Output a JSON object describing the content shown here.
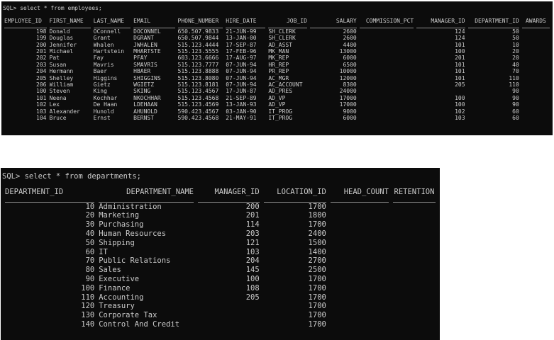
{
  "colors": {
    "terminal_background": "#0c0c0c",
    "terminal_text": "#cccccc",
    "separator_line": "#8f8f8f",
    "page_background": "#ffffff"
  },
  "employees_window": {
    "prompt": "SQL> select * from employees;",
    "columns": [
      "EMPLOYEE_ID",
      "FIRST_NAME",
      "LAST_NAME",
      "EMAIL",
      "PHONE_NUMBER",
      "HIRE_DATE",
      "JOB_ID",
      "SALARY",
      "COMMISSION_PCT",
      "MANAGER_ID",
      "DEPARTMENT_ID",
      "AWARDS"
    ],
    "rows": [
      [
        "198",
        "Donald",
        "OConnell",
        "DOCONNEL",
        "650.507.9833",
        "21-JUN-99",
        "SH_CLERK",
        "2600",
        "",
        "124",
        "50",
        ""
      ],
      [
        "199",
        "Douglas",
        "Grant",
        "DGRANT",
        "650.507.9844",
        "13-JAN-00",
        "SH_CLERK",
        "2600",
        "",
        "124",
        "50",
        ""
      ],
      [
        "200",
        "Jennifer",
        "Whalen",
        "JWHALEN",
        "515.123.4444",
        "17-SEP-87",
        "AD_ASST",
        "4400",
        "",
        "101",
        "10",
        ""
      ],
      [
        "201",
        "Michael",
        "Hartstein",
        "MHARTSTE",
        "515.123.5555",
        "17-FEB-96",
        "MK_MAN",
        "13000",
        "",
        "100",
        "20",
        ""
      ],
      [
        "202",
        "Pat",
        "Fay",
        "PFAY",
        "603.123.6666",
        "17-AUG-97",
        "MK_REP",
        "6000",
        "",
        "201",
        "20",
        ""
      ],
      [
        "203",
        "Susan",
        "Mavris",
        "SMAVRIS",
        "515.123.7777",
        "07-JUN-94",
        "HR_REP",
        "6500",
        "",
        "101",
        "40",
        ""
      ],
      [
        "204",
        "Hermann",
        "Baer",
        "HBAER",
        "515.123.8888",
        "07-JUN-94",
        "PR_REP",
        "10000",
        "",
        "101",
        "70",
        ""
      ],
      [
        "205",
        "Shelley",
        "Higgins",
        "SHIGGINS",
        "515.123.8080",
        "07-JUN-94",
        "AC_MGR",
        "12000",
        "",
        "101",
        "110",
        ""
      ],
      [
        "206",
        "William",
        "Gietz",
        "WGIETZ",
        "515.123.8181",
        "07-JUN-94",
        "AC_ACCOUNT",
        "8300",
        "",
        "205",
        "110",
        ""
      ],
      [
        "100",
        "Steven",
        "King",
        "SKING",
        "515.123.4567",
        "17-JUN-87",
        "AD_PRES",
        "24000",
        "",
        "",
        "90",
        ""
      ],
      [
        "101",
        "Neena",
        "Kochhar",
        "NKOCHHAR",
        "515.123.4568",
        "21-SEP-89",
        "AD_VP",
        "17000",
        "",
        "100",
        "90",
        ""
      ],
      [
        "102",
        "Lex",
        "De Haan",
        "LDEHAAN",
        "515.123.4569",
        "13-JAN-93",
        "AD_VP",
        "17000",
        "",
        "100",
        "90",
        ""
      ],
      [
        "103",
        "Alexander",
        "Hunold",
        "AHUNOLD",
        "590.423.4567",
        "03-JAN-90",
        "IT_PROG",
        "9000",
        "",
        "102",
        "60",
        ""
      ],
      [
        "104",
        "Bruce",
        "Ernst",
        "BERNST",
        "590.423.4568",
        "21-MAY-91",
        "IT_PROG",
        "6000",
        "",
        "103",
        "60",
        ""
      ]
    ]
  },
  "departments_window": {
    "prompt": "SQL> select * from departments;",
    "columns": [
      "DEPARTMENT_ID",
      "DEPARTMENT_NAME",
      "MANAGER_ID",
      "LOCATION_ID",
      "HEAD_COUNT",
      "RETENTION"
    ],
    "rows": [
      [
        "10",
        "Administration",
        "200",
        "1700",
        "",
        ""
      ],
      [
        "20",
        "Marketing",
        "201",
        "1800",
        "",
        ""
      ],
      [
        "30",
        "Purchasing",
        "114",
        "1700",
        "",
        ""
      ],
      [
        "40",
        "Human Resources",
        "203",
        "2400",
        "",
        ""
      ],
      [
        "50",
        "Shipping",
        "121",
        "1500",
        "",
        ""
      ],
      [
        "60",
        "IT",
        "103",
        "1400",
        "",
        ""
      ],
      [
        "70",
        "Public Relations",
        "204",
        "2700",
        "",
        ""
      ],
      [
        "80",
        "Sales",
        "145",
        "2500",
        "",
        ""
      ],
      [
        "90",
        "Executive",
        "100",
        "1700",
        "",
        ""
      ],
      [
        "100",
        "Finance",
        "108",
        "1700",
        "",
        ""
      ],
      [
        "110",
        "Accounting",
        "205",
        "1700",
        "",
        ""
      ],
      [
        "120",
        "Treasury",
        "",
        "1700",
        "",
        ""
      ],
      [
        "130",
        "Corporate Tax",
        "",
        "1700",
        "",
        ""
      ],
      [
        "140",
        "Control And Credit",
        "",
        "1700",
        "",
        ""
      ]
    ]
  }
}
